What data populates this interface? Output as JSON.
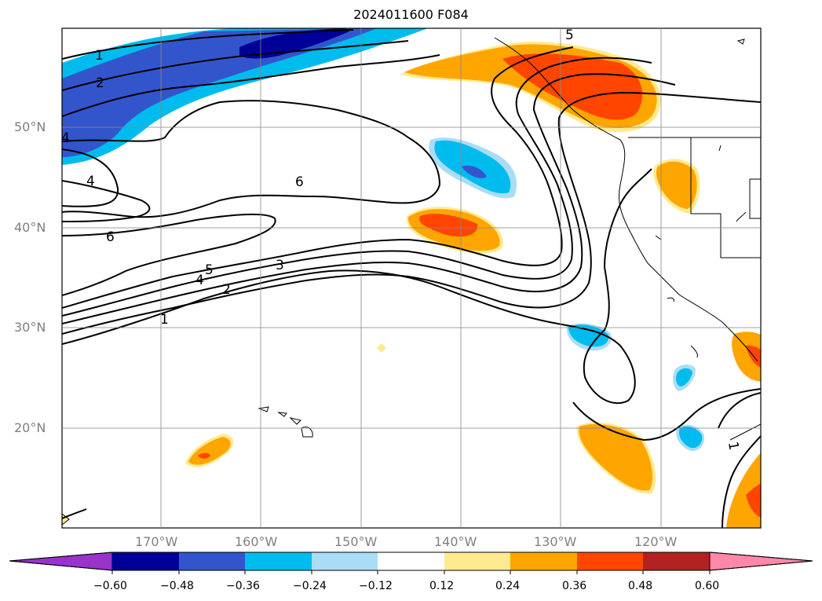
{
  "title": "2024011600 F084",
  "map": {
    "lat_labels": [
      "50°N",
      "40°N",
      "30°N",
      "20°N"
    ],
    "lon_labels": [
      "170°W",
      "160°W",
      "150°W",
      "140°W",
      "130°W",
      "120°W"
    ],
    "contour_labels": [
      "1",
      "2",
      "4",
      "4",
      "6",
      "6",
      "5",
      "4",
      "3",
      "2",
      "1",
      "5",
      "1"
    ]
  },
  "colorbar": {
    "tick_labels": [
      "−0.60",
      "−0.48",
      "−0.36",
      "−0.24",
      "−0.12",
      "0.12",
      "0.24",
      "0.36",
      "0.48",
      "0.60"
    ],
    "colors": [
      "#9933cc",
      "#000099",
      "#3355cc",
      "#00bbee",
      "#aaddf5",
      "#ffffff",
      "#ffea8f",
      "#ffa500",
      "#ff4500",
      "#b22222",
      "#ff88aa"
    ]
  }
}
